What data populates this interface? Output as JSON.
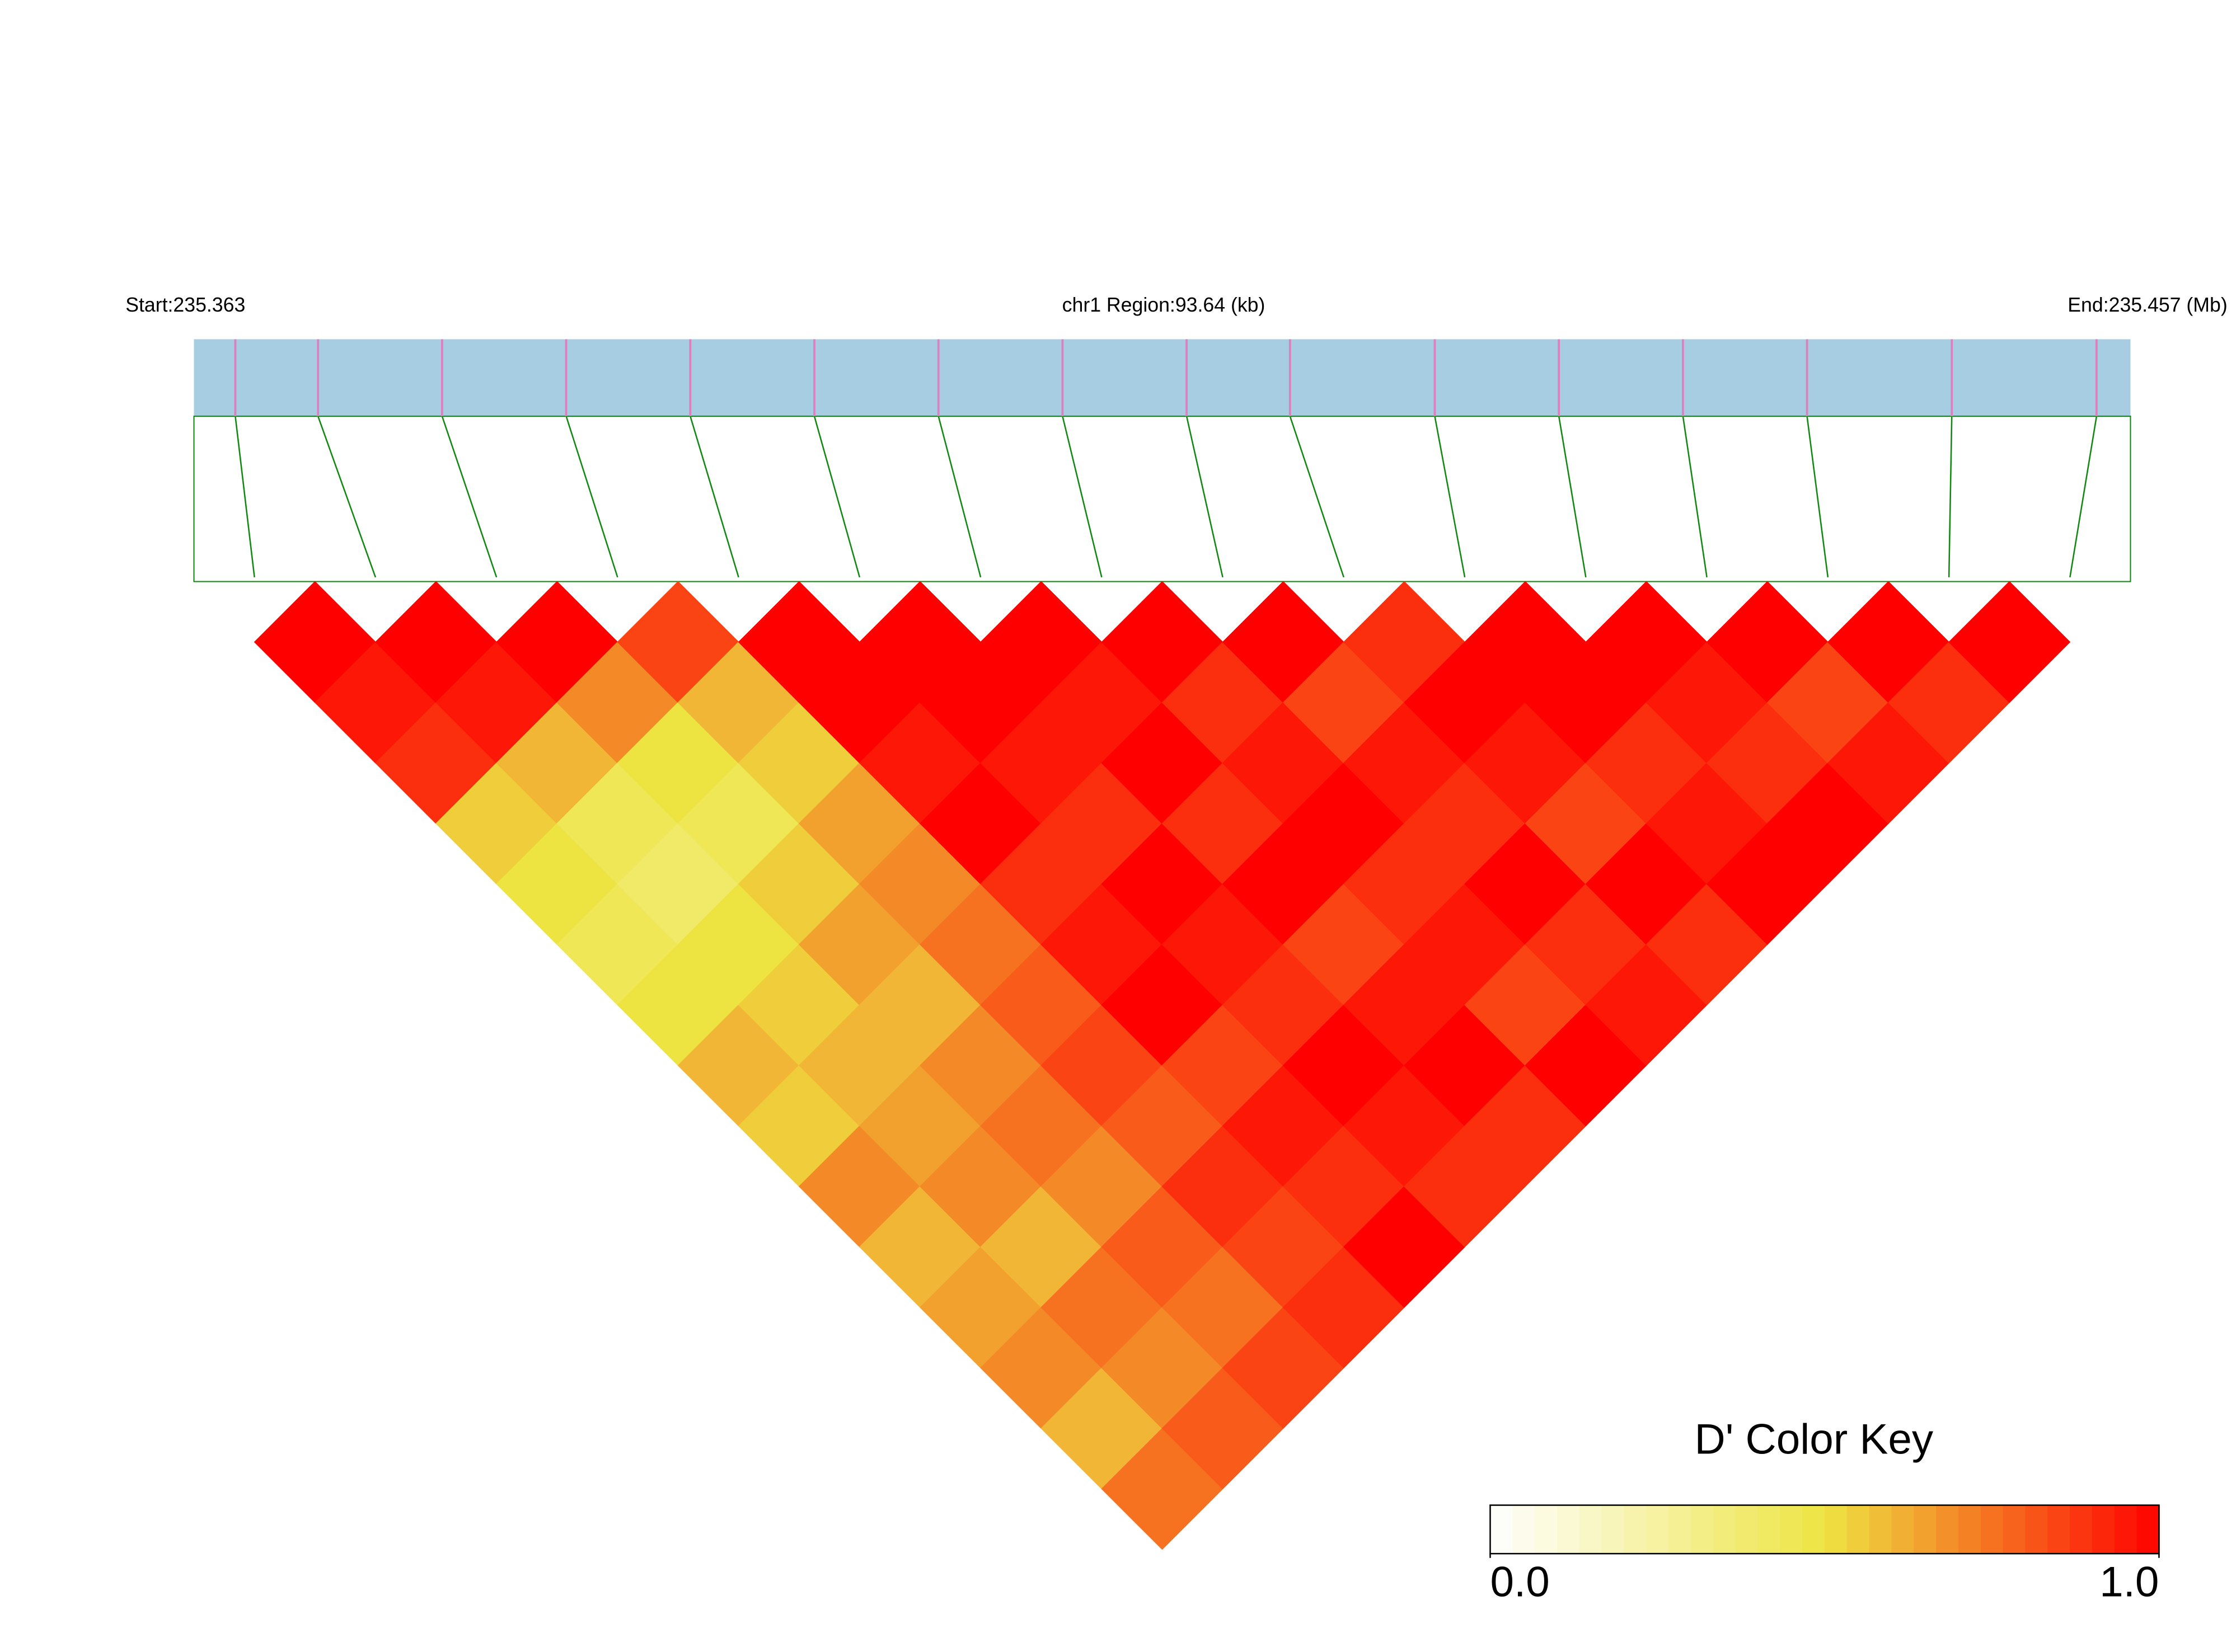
{
  "chart_data": {
    "type": "heatmap",
    "chromosome_label": "chr1 Region:93.64 (kb)",
    "start_label": "Start:235.363",
    "end_label": "End:235.457 (Mb)",
    "region_kb": [
      0,
      93.64
    ],
    "snp_positions": [
      2,
      6,
      12,
      18,
      24,
      30,
      36,
      42,
      48,
      53,
      60,
      66,
      72,
      78,
      85,
      92
    ],
    "dprime": [
      [
        1.0,
        0.95,
        0.9,
        0.55,
        0.5,
        0.45,
        0.5,
        0.6,
        0.55,
        0.7,
        0.6,
        0.65,
        0.7,
        0.6,
        0.75
      ],
      [
        1.0,
        0.95,
        0.6,
        0.45,
        0.4,
        0.5,
        0.55,
        0.6,
        0.65,
        0.7,
        0.6,
        0.75,
        0.7,
        0.8
      ],
      [
        1.0,
        0.7,
        0.5,
        0.45,
        0.55,
        0.65,
        0.6,
        0.7,
        0.75,
        0.7,
        0.8,
        0.75,
        0.85
      ],
      [
        0.85,
        0.6,
        0.55,
        0.65,
        0.7,
        0.75,
        0.8,
        0.85,
        0.8,
        0.9,
        0.85,
        0.9
      ],
      [
        1.0,
        1.0,
        0.95,
        1.0,
        0.9,
        0.95,
        1.0,
        0.85,
        0.95,
        0.9,
        1.0
      ],
      [
        1.0,
        1.0,
        0.95,
        0.9,
        1.0,
        0.95,
        0.9,
        1.0,
        0.95,
        0.9
      ],
      [
        1.0,
        0.95,
        1.0,
        0.9,
        1.0,
        0.85,
        0.95,
        1.0,
        0.9
      ],
      [
        1.0,
        0.9,
        0.95,
        1.0,
        0.9,
        0.95,
        0.85,
        1.0
      ],
      [
        1.0,
        0.85,
        0.95,
        0.9,
        1.0,
        0.9,
        0.95
      ],
      [
        0.9,
        1.0,
        0.95,
        0.85,
        1.0,
        0.9
      ],
      [
        1.0,
        1.0,
        0.9,
        0.95,
        1.0
      ],
      [
        1.0,
        0.95,
        0.9,
        1.0
      ],
      [
        1.0,
        0.85,
        0.95
      ],
      [
        1.0,
        0.9
      ],
      [
        1.0
      ]
    ],
    "colorbar_title": "D' Color Key",
    "clim": [
      0,
      1
    ],
    "cticks": [
      {
        "value": 0,
        "label": "0.0"
      },
      {
        "value": 1,
        "label": "1.0"
      }
    ],
    "colorscale": [
      "#ffffff",
      "#ede442",
      "#ff0000"
    ],
    "track_color": "#a6cde1",
    "snp_color": "#e07fc0",
    "link_color": "#118811"
  }
}
